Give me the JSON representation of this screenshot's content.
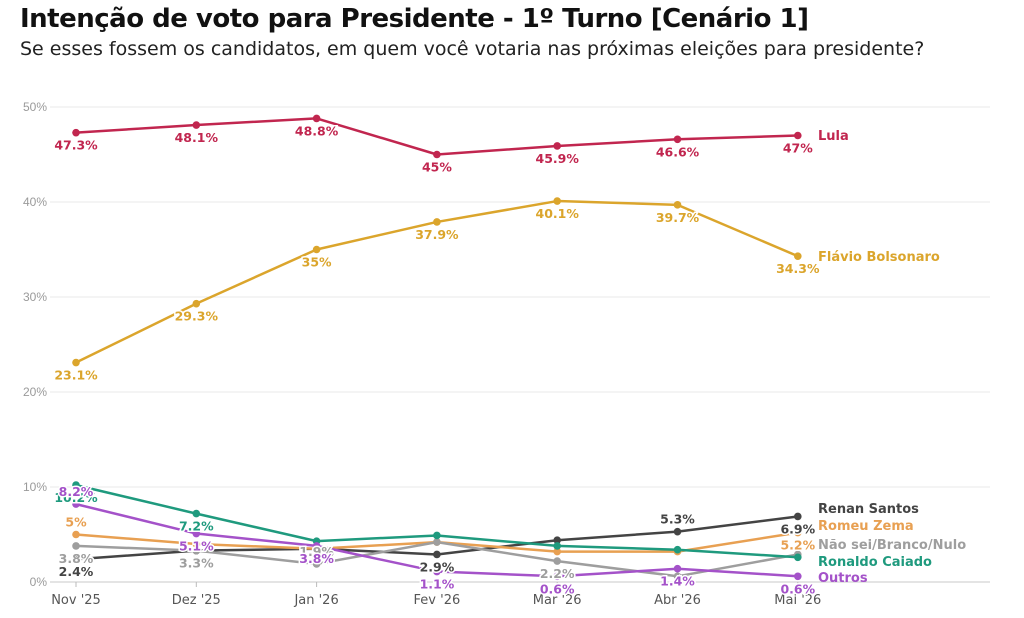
{
  "title": "Intenção de voto para Presidente - 1º Turno [Cenário 1]",
  "subtitle": "Se esses fossem os candidatos, em quem você votaria nas próximas eleições para presidente?",
  "chart_data": {
    "type": "line",
    "title": "Intenção de voto para Presidente - 1º Turno [Cenário 1]",
    "subtitle": "Se esses fossem os candidatos, em quem você votaria nas próximas eleições para presidente?",
    "xlabel": "",
    "ylabel": "",
    "categories": [
      "Nov '25",
      "Dez '25",
      "Jan '26",
      "Fev '26",
      "Mar '26",
      "Abr '26",
      "Mai '26"
    ],
    "ylim": [
      0,
      50
    ],
    "yticks": [
      0,
      10,
      20,
      30,
      40,
      50
    ],
    "ytick_labels": [
      "0%",
      "10%",
      "20%",
      "30%",
      "40%",
      "50%"
    ],
    "grid": true,
    "legend": "series labels at right end of lines",
    "series": [
      {
        "name": "Lula",
        "color": "#c1264f",
        "values": [
          47.3,
          48.1,
          48.8,
          45,
          45.9,
          46.6,
          47
        ],
        "labels": [
          "47.3%",
          "48.1%",
          "48.8%",
          "45%",
          "45.9%",
          "46.6%",
          "47%"
        ]
      },
      {
        "name": "Flávio Bolsonaro",
        "color": "#dba52c",
        "values": [
          23.1,
          29.3,
          35,
          37.9,
          40.1,
          39.7,
          34.3
        ],
        "labels": [
          "23.1%",
          "29.3%",
          "35%",
          "37.9%",
          "40.1%",
          "39.7%",
          "34.3%"
        ]
      },
      {
        "name": "Renan Santos",
        "color": "#444444",
        "values": [
          2.4,
          3.3,
          3.5,
          2.9,
          4.4,
          5.3,
          6.9
        ],
        "labels": [
          "2.4%",
          "",
          "",
          "2.9%",
          "",
          "5.3%",
          "6.9%"
        ]
      },
      {
        "name": "Romeu Zema",
        "color": "#e8a052",
        "values": [
          5,
          4,
          3.5,
          4.2,
          3.2,
          3.2,
          5.2
        ],
        "labels": [
          "5%",
          "",
          "",
          "",
          "",
          "",
          "5.2%"
        ]
      },
      {
        "name": "Não sei/Branco/Nulo",
        "color": "#9e9e9e",
        "values": [
          3.8,
          3.3,
          1.9,
          4.2,
          2.2,
          0.6,
          2.9
        ],
        "labels": [
          "3.8%",
          "3.3%",
          "1.9%",
          "",
          "2.2%",
          "",
          ""
        ]
      },
      {
        "name": "Ronaldo Caiado",
        "color": "#1f9a7e",
        "values": [
          10.2,
          7.2,
          4.3,
          4.9,
          3.8,
          3.4,
          2.6
        ],
        "labels": [
          "10.2%",
          "7.2%",
          "",
          "",
          "",
          "",
          ""
        ]
      },
      {
        "name": "Outros",
        "color": "#a452c9",
        "values": [
          8.2,
          5.1,
          3.8,
          1.1,
          0.6,
          1.4,
          0.6
        ],
        "labels": [
          "8.2%",
          "5.1%",
          "3.8%",
          "1.1%",
          "0.6%",
          "1.4%",
          "0.6%"
        ]
      }
    ]
  }
}
